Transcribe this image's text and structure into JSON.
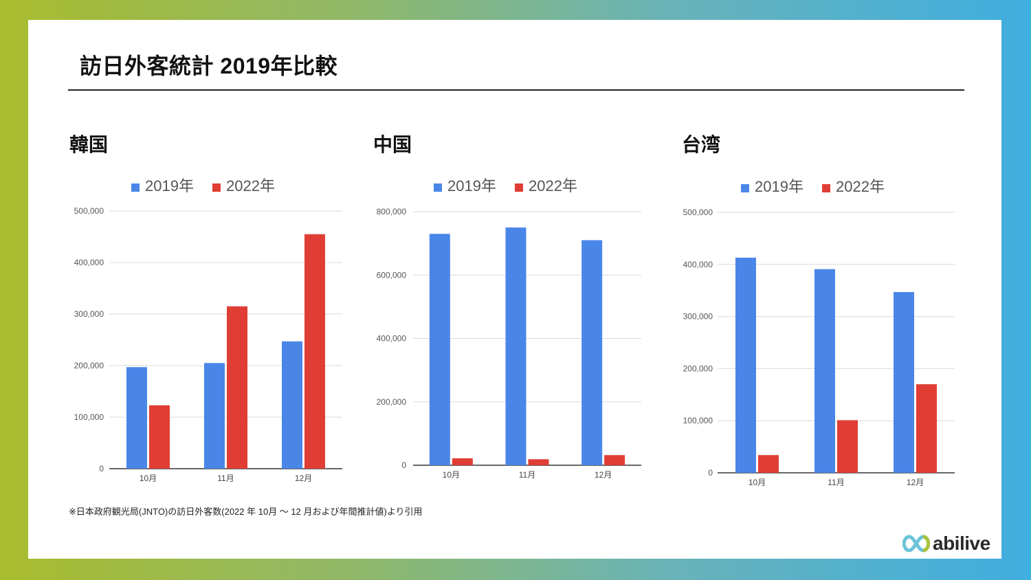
{
  "slide": {
    "title": "訪日外客統計 2019年比較",
    "footnote": "※日本政府観光局(JNTO)の訪日外客数(2022 年 10月 ～ 12 月および年間推計値)より引用",
    "logo_text": "abilive"
  },
  "colors": {
    "series_2019": "#4a86e8",
    "series_2022": "#e03e35",
    "gridline": "#d9d9d9",
    "axis": "#333333"
  },
  "chart_data": [
    {
      "type": "bar",
      "title": "韓国",
      "categories": [
        "10月",
        "11月",
        "12月"
      ],
      "series": [
        {
          "name": "2019年",
          "values": [
            197000,
            205000,
            247000
          ]
        },
        {
          "name": "2022年",
          "values": [
            123000,
            315000,
            455000
          ]
        }
      ],
      "ylim": [
        0,
        500000
      ],
      "yticks": [
        0,
        100000,
        200000,
        300000,
        400000,
        500000
      ],
      "ytick_labels": [
        "0",
        "100,000",
        "200,000",
        "300,000",
        "400,000",
        "500,000"
      ],
      "legend": "top",
      "grid": true
    },
    {
      "type": "bar",
      "title": "中国",
      "categories": [
        "10月",
        "11月",
        "12月"
      ],
      "series": [
        {
          "name": "2019年",
          "values": [
            730000,
            750000,
            710000
          ]
        },
        {
          "name": "2022年",
          "values": [
            22000,
            19000,
            32000
          ]
        }
      ],
      "ylim": [
        0,
        800000
      ],
      "yticks": [
        0,
        200000,
        400000,
        600000,
        800000
      ],
      "ytick_labels": [
        "0",
        "200,000",
        "400,000",
        "600,000",
        "800,000"
      ],
      "legend": "top",
      "grid": true
    },
    {
      "type": "bar",
      "title": "台湾",
      "categories": [
        "10月",
        "11月",
        "12月"
      ],
      "series": [
        {
          "name": "2019年",
          "values": [
            413000,
            391000,
            347000
          ]
        },
        {
          "name": "2022年",
          "values": [
            34000,
            101000,
            170000
          ]
        }
      ],
      "ylim": [
        0,
        500000
      ],
      "yticks": [
        0,
        100000,
        200000,
        300000,
        400000,
        500000
      ],
      "ytick_labels": [
        "0",
        "100,000",
        "200,000",
        "300,000",
        "400,000",
        "500,000"
      ],
      "legend": "top",
      "grid": true
    }
  ]
}
